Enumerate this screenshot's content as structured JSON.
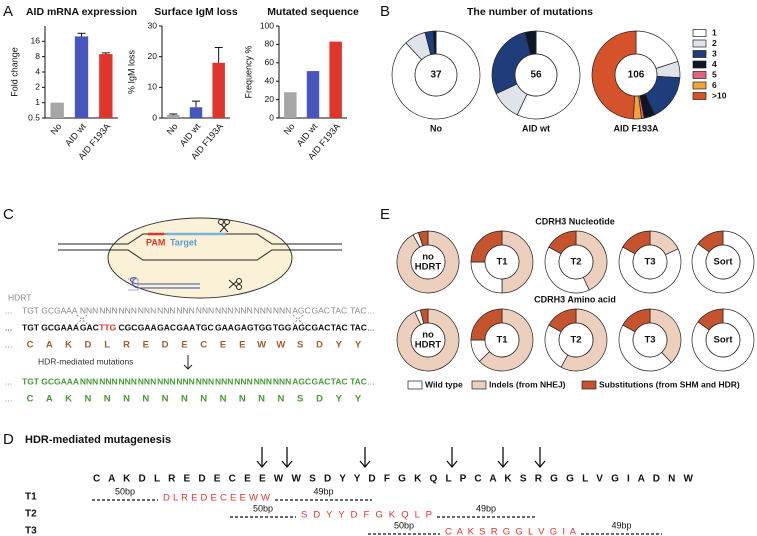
{
  "panel_labels": [
    "A",
    "B",
    "C",
    "D",
    "E"
  ],
  "chart_data": [
    {
      "type": "bar",
      "title": "AID mRNA expression",
      "y_label": "Fold change",
      "log_scale": true,
      "categories": [
        "No",
        "AID wt",
        "AID F193A"
      ],
      "values": [
        1,
        20,
        9
      ],
      "errors": [
        null,
        3,
        0.5
      ],
      "colors": [
        "#a6a6a6",
        "#4656bd",
        "#e0352a"
      ],
      "ylim": [
        0.5,
        32
      ],
      "yticks": [
        0.5,
        1,
        2,
        4,
        8,
        16
      ]
    },
    {
      "type": "bar",
      "title": "Surface IgM loss",
      "y_label": "% IgM loss",
      "log_scale": false,
      "categories": [
        "No",
        "AID wt",
        "AID F193A"
      ],
      "values": [
        1,
        3.5,
        18
      ],
      "errors": [
        0.3,
        2,
        5
      ],
      "colors": [
        "#a6a6a6",
        "#4656bd",
        "#e0352a"
      ],
      "ylim": [
        0,
        30
      ],
      "yticks": [
        0,
        10,
        20,
        30
      ]
    },
    {
      "type": "bar",
      "title": "Mutated sequence",
      "y_label": "Frequency %",
      "log_scale": false,
      "categories": [
        "No",
        "AID wt",
        "AID F193A"
      ],
      "values": [
        28,
        51,
        83
      ],
      "errors": [
        null,
        null,
        null
      ],
      "colors": [
        "#a6a6a6",
        "#4656bd",
        "#e0352a"
      ],
      "ylim": [
        0,
        100
      ],
      "yticks": [
        0,
        20,
        40,
        60,
        80,
        100
      ]
    },
    {
      "type": "donut",
      "title": "The number of mutations",
      "categories": [
        "No",
        "AID wt",
        "AID F193A"
      ],
      "center_labels": [
        37,
        56,
        106
      ],
      "series": [
        {
          "name": "1",
          "color": "#ffffff",
          "values": [
            88,
            57,
            20
          ]
        },
        {
          "name": "2",
          "color": "#dfe3ea",
          "values": [
            8,
            11,
            6
          ]
        },
        {
          "name": "3",
          "color": "#1f3d7a",
          "values": [
            3,
            28,
            17
          ]
        },
        {
          "name": "4",
          "color": "#0e1526",
          "values": [
            1,
            4,
            4
          ]
        },
        {
          "name": "5",
          "color": "#e0657a",
          "values": [
            0,
            0,
            1
          ]
        },
        {
          "name": "6",
          "color": "#f0a33a",
          "values": [
            0,
            0,
            3
          ]
        },
        {
          "name": ">10",
          "color": "#d6522b",
          "values": [
            0,
            0,
            49
          ]
        }
      ]
    },
    {
      "type": "donut_grid",
      "titles": [
        "CDRH3 Nucleotide",
        "CDRH3 Amino acid"
      ],
      "categories": [
        [
          "no",
          "HDRT"
        ],
        "T1",
        "T2",
        "T3",
        "Sort"
      ],
      "series": [
        {
          "name": "Wild type",
          "color": "#ffffff",
          "values": [
            [
              3,
              25,
              40,
              65,
              85
            ],
            [
              3,
              12,
              25,
              45,
              85
            ]
          ]
        },
        {
          "name": "Indels (from NHEJ)",
          "color": "#ecd0bd",
          "values": [
            [
              92,
              50,
              43,
              18,
              0
            ],
            [
              93,
              63,
              58,
              38,
              0
            ]
          ]
        },
        {
          "name": "Substitutions (from SHM and HDR)",
          "color": "#c5532e",
          "values": [
            [
              5,
              25,
              17,
              17,
              15
            ],
            [
              4,
              25,
              17,
              17,
              15
            ]
          ]
        }
      ]
    }
  ],
  "hdr_diagram": {
    "pam": "PAM",
    "target": "Target",
    "hdrt": "HDRT",
    "ellipsis": "...",
    "arrow_label": "HDR-mediated mutations",
    "lines": [
      {
        "color": "#8a8a8a",
        "codons": [
          "TGT",
          "GCG",
          "AAA",
          "NNN",
          "NNN",
          "NNN",
          "NNN",
          "NNN",
          "NNN",
          "NNN",
          "NNN",
          "NNN",
          "NNN",
          "NNN",
          "AGC",
          "GAC",
          "TAC",
          "TAC"
        ]
      },
      {
        "color": "#111111",
        "highlight": [
          4
        ],
        "highlight_color": "#e0352a",
        "codons": [
          "TGT",
          "GCG",
          "AAA",
          "GAC",
          "TTG",
          "CGC",
          "GAA",
          "GAC",
          "GAA",
          "TGC",
          "GAA",
          "GAG",
          "TGG",
          "TGG",
          "AGC",
          "GAC",
          "TAC",
          "TAC"
        ]
      },
      {
        "color": "#4a9a3a",
        "codons": [
          "TGT",
          "GCG",
          "AAA",
          "NNN",
          "NNN",
          "NNN",
          "NNN",
          "NNN",
          "NNN",
          "NNN",
          "NNN",
          "NNN",
          "NNN",
          "NNN",
          "AGC",
          "GAC",
          "TAC",
          "TAC"
        ]
      }
    ],
    "amino_wt": {
      "color": "#a0602a",
      "letters": [
        "C",
        "A",
        "K",
        "D",
        "L",
        "R",
        "E",
        "D",
        "E",
        "C",
        "E",
        "E",
        "W",
        "W",
        "S",
        "D",
        "Y",
        "Y"
      ]
    },
    "amino_mut": {
      "color": "#4a9a3a",
      "letters": [
        "C",
        "A",
        "K",
        "N",
        "N",
        "N",
        "N",
        "N",
        "N",
        "N",
        "N",
        "N",
        "N",
        "N",
        "S",
        "D",
        "Y",
        "Y"
      ]
    }
  },
  "mutagenesis": {
    "title": "HDR-mediated mutagenesis",
    "sequence": "C A K D L R E D E C E E W W S D Y Y D F G K Q L P C A K S R G G L V G I A D N W",
    "templates": [
      {
        "name": "T1",
        "left": "50bp",
        "insert": "D L R E D E C E E W W",
        "right": "49bp"
      },
      {
        "name": "T2",
        "left": "50bp",
        "insert": "S D Y Y D F G K Q L P",
        "right": "49bp"
      },
      {
        "name": "T3",
        "left": "50bp",
        "insert": "C A K S R G G L V G I A",
        "right": "49bp"
      }
    ]
  }
}
